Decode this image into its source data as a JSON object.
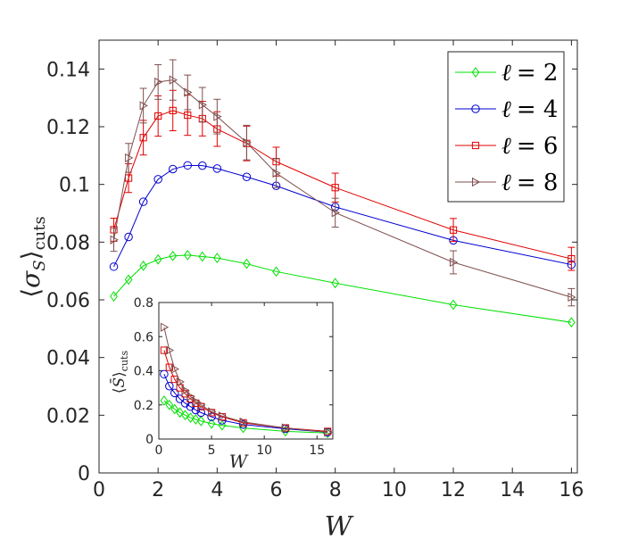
{
  "chart_data": [
    {
      "type": "line",
      "id": "main",
      "xlabel": "W",
      "ylabel": "⟨σ_S⟩_cuts",
      "ylabel_parts": {
        "open": "⟨",
        "sym": "σ",
        "sub": "S",
        "close": "⟩",
        "sub2": "cuts"
      },
      "xlim": [
        0,
        16.2
      ],
      "ylim": [
        0,
        0.15
      ],
      "xticks": [
        0,
        2,
        4,
        6,
        8,
        10,
        12,
        14,
        16
      ],
      "xtick_labels": [
        "0",
        "2",
        "4",
        "6",
        "8",
        "10",
        "12",
        "14",
        "16"
      ],
      "yticks": [
        0,
        0.02,
        0.04,
        0.06,
        0.08,
        0.1,
        0.12,
        0.14
      ],
      "ytick_labels": [
        "0",
        "0.02",
        "0.04",
        "0.06",
        "0.08",
        "0.1",
        "0.12",
        "0.14"
      ],
      "legend_position": "top-right",
      "series": [
        {
          "name": "ℓ = 2",
          "legend_sym": "ℓ",
          "legend_val": "= 2",
          "color": "#00e000",
          "marker": "diamond",
          "x": [
            0.5,
            1,
            1.5,
            2,
            2.5,
            3,
            3.5,
            4,
            5,
            6,
            8,
            12,
            16
          ],
          "y": [
            0.0612,
            0.067,
            0.0718,
            0.074,
            0.0752,
            0.0755,
            0.075,
            0.0745,
            0.0725,
            0.0698,
            0.0658,
            0.0583,
            0.0522
          ]
        },
        {
          "name": "ℓ = 4",
          "legend_sym": "ℓ",
          "legend_val": "= 4",
          "color": "#0000d0",
          "marker": "circle",
          "x": [
            0.5,
            1,
            1.5,
            2,
            2.5,
            3,
            3.5,
            4,
            5,
            6,
            8,
            12,
            16
          ],
          "y": [
            0.0715,
            0.0818,
            0.094,
            0.1018,
            0.1053,
            0.1066,
            0.1065,
            0.1055,
            0.1026,
            0.0995,
            0.0922,
            0.0806,
            0.0722
          ]
        },
        {
          "name": "ℓ = 6",
          "legend_sym": "ℓ",
          "legend_val": "= 6",
          "color": "#e00000",
          "marker": "square",
          "x": [
            0.5,
            1,
            1.5,
            2,
            2.5,
            3,
            3.5,
            4,
            5,
            6,
            8,
            12,
            16
          ],
          "y": [
            0.0843,
            0.1022,
            0.1162,
            0.1237,
            0.1256,
            0.124,
            0.1228,
            0.1192,
            0.1142,
            0.1079,
            0.0989,
            0.0842,
            0.0742
          ],
          "err": [
            0.004,
            0.005,
            0.006,
            0.007,
            0.007,
            0.007,
            0.006,
            0.006,
            0.006,
            0.005,
            0.005,
            0.004,
            0.004
          ]
        },
        {
          "name": "ℓ = 8",
          "legend_sym": "ℓ",
          "legend_val": "= 8",
          "color": "#7f4f4f",
          "marker": "triangle-right",
          "x": [
            0.5,
            1,
            1.5,
            2,
            2.5,
            3,
            3.5,
            4,
            5,
            6,
            8,
            12,
            16
          ],
          "y": [
            0.0808,
            0.1092,
            0.1273,
            0.1355,
            0.1362,
            0.1319,
            0.1276,
            0.1235,
            0.1145,
            0.1039,
            0.0902,
            0.073,
            0.0609
          ],
          "err": [
            0.004,
            0.005,
            0.006,
            0.006,
            0.007,
            0.006,
            0.006,
            0.006,
            0.006,
            0.005,
            0.005,
            0.004,
            0.003
          ]
        }
      ]
    },
    {
      "type": "line",
      "id": "inset",
      "xlabel": "W",
      "ylabel": "⟨S̄⟩_cuts",
      "ylabel_parts": {
        "open": "⟨",
        "sym": "S̄",
        "close": "⟩",
        "sub2": "cuts"
      },
      "xlim": [
        0,
        16.5
      ],
      "ylim": [
        0,
        0.8
      ],
      "xticks": [
        0,
        5,
        10,
        15
      ],
      "xtick_labels": [
        "0",
        "5",
        "10",
        "15"
      ],
      "yticks": [
        0,
        0.2,
        0.4,
        0.6,
        0.8
      ],
      "ytick_labels": [
        "0",
        "0.2",
        "0.4",
        "0.6",
        "0.8"
      ],
      "series": [
        {
          "name": "ℓ = 2",
          "color": "#00e000",
          "marker": "diamond",
          "x": [
            0.5,
            1,
            1.5,
            2,
            2.5,
            3,
            3.5,
            4,
            5,
            6,
            8,
            12,
            16
          ],
          "y": [
            0.225,
            0.2,
            0.175,
            0.155,
            0.14,
            0.125,
            0.115,
            0.105,
            0.09,
            0.08,
            0.065,
            0.045,
            0.035
          ]
        },
        {
          "name": "ℓ = 4",
          "color": "#0000d0",
          "marker": "circle",
          "x": [
            0.5,
            1,
            1.5,
            2,
            2.5,
            3,
            3.5,
            4,
            5,
            6,
            8,
            12,
            16
          ],
          "y": [
            0.38,
            0.31,
            0.27,
            0.235,
            0.21,
            0.19,
            0.17,
            0.155,
            0.13,
            0.11,
            0.085,
            0.06,
            0.04
          ]
        },
        {
          "name": "ℓ = 6",
          "color": "#e00000",
          "marker": "square",
          "x": [
            0.5,
            1,
            1.5,
            2,
            2.5,
            3,
            3.5,
            4,
            5,
            6,
            8,
            12,
            16
          ],
          "y": [
            0.52,
            0.42,
            0.35,
            0.3,
            0.265,
            0.235,
            0.21,
            0.19,
            0.155,
            0.13,
            0.095,
            0.065,
            0.045
          ]
        },
        {
          "name": "ℓ = 8",
          "color": "#7f4f4f",
          "marker": "triangle-right",
          "x": [
            0.5,
            1,
            1.5,
            2,
            2.5,
            3,
            3.5,
            4,
            5,
            6,
            8,
            12,
            16
          ],
          "y": [
            0.655,
            0.52,
            0.41,
            0.335,
            0.285,
            0.25,
            0.22,
            0.2,
            0.16,
            0.135,
            0.1,
            0.065,
            0.04
          ]
        }
      ]
    }
  ]
}
